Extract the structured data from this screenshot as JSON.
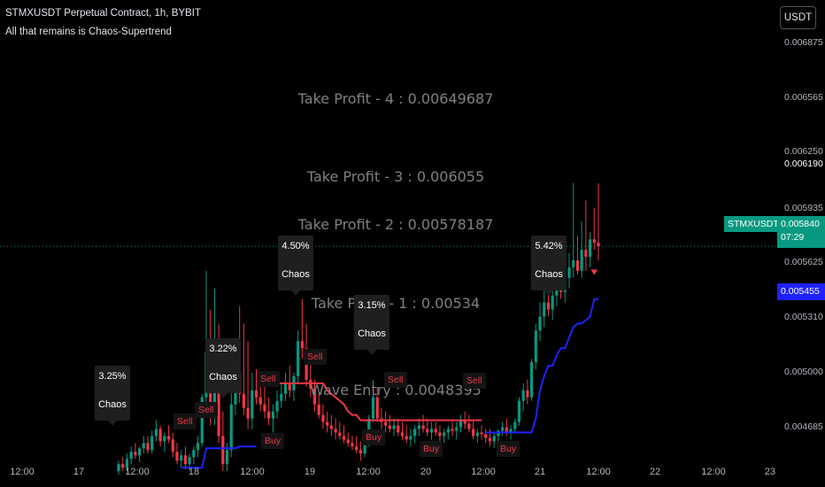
{
  "header": {
    "title": "STMXUSDT Perpetual Contract, 1h, BYBIT",
    "subtitle": "All that remains is Chaos-Supertrend",
    "currency_button": "USDT"
  },
  "colors": {
    "background": "#000000",
    "up_candle": "#089981",
    "down_candle": "#f23645",
    "supertrend_up": "#1e22ff",
    "supertrend_down": "#f23645",
    "annotation_text": "#808083"
  },
  "chart_data": {
    "type": "candlestick",
    "symbol_label": "STMXUSDT.P",
    "last_price": "0.005840",
    "countdown": "07:29",
    "supertrend_value": "0.005455",
    "yaxis": {
      "min": 0.0045,
      "max": 0.007,
      "ticks": [
        "0.006875",
        "0.006565",
        "0.006250",
        "0.006190",
        "0.005935",
        "0.005625",
        "0.005310",
        "0.005000",
        "0.004685"
      ]
    },
    "xaxis": {
      "ticks": [
        "12:00",
        "17",
        "12:00",
        "18",
        "12:00",
        "19",
        "12:00",
        "20",
        "12:00",
        "21",
        "12:00",
        "22",
        "12:00",
        "23"
      ]
    },
    "levels": [
      {
        "label": "Take Profit - 4 : 0.00649687",
        "value": 0.00649687
      },
      {
        "label": "Take Profit - 3 : 0.006055",
        "value": 0.006055
      },
      {
        "label": "Take Profit - 2 : 0.00578187",
        "value": 0.00578187
      },
      {
        "label": "Take Profit - 1 : 0.00534",
        "value": 0.00534
      },
      {
        "label": "Wave Entry : 0.0048395",
        "value": 0.0048395
      }
    ],
    "chaos_labels": [
      {
        "pct": "3.25%",
        "text": "Chaos"
      },
      {
        "pct": "3.22%",
        "text": "Chaos"
      },
      {
        "pct": "4.50%",
        "text": "Chaos"
      },
      {
        "pct": "3.15%",
        "text": "Chaos"
      },
      {
        "pct": "5.42%",
        "text": "Chaos"
      }
    ],
    "signals": [
      {
        "type": "sell",
        "text": "Sell"
      },
      {
        "type": "sell",
        "text": "Sell"
      },
      {
        "type": "sell",
        "text": "Sell"
      },
      {
        "type": "sell",
        "text": "Sell"
      },
      {
        "type": "sell",
        "text": "Sell"
      },
      {
        "type": "sell",
        "text": "Sell"
      },
      {
        "type": "buy",
        "text": "Buy"
      },
      {
        "type": "buy",
        "text": "Buy"
      },
      {
        "type": "buy",
        "text": "Buy"
      },
      {
        "type": "buy",
        "text": "Buy"
      }
    ],
    "candles_ohlc": [
      [
        0.00456,
        0.00462,
        0.00454,
        0.0046
      ],
      [
        0.0046,
        0.00464,
        0.00456,
        0.00458
      ],
      [
        0.00458,
        0.00466,
        0.00456,
        0.00463
      ],
      [
        0.00463,
        0.0047,
        0.0046,
        0.00467
      ],
      [
        0.00467,
        0.00472,
        0.00463,
        0.00465
      ],
      [
        0.00465,
        0.0047,
        0.00461,
        0.00469
      ],
      [
        0.00469,
        0.00476,
        0.00466,
        0.00472
      ],
      [
        0.00472,
        0.00476,
        0.00466,
        0.00468
      ],
      [
        0.00468,
        0.00479,
        0.00466,
        0.00476
      ],
      [
        0.00476,
        0.00485,
        0.00473,
        0.0048
      ],
      [
        0.0048,
        0.00482,
        0.0047,
        0.00473
      ],
      [
        0.00473,
        0.00478,
        0.00467,
        0.00476
      ],
      [
        0.00476,
        0.00482,
        0.00472,
        0.00474
      ],
      [
        0.00474,
        0.00478,
        0.00464,
        0.00467
      ],
      [
        0.00467,
        0.00472,
        0.0046,
        0.00462
      ],
      [
        0.00462,
        0.00468,
        0.00458,
        0.00465
      ],
      [
        0.00465,
        0.0047,
        0.00457,
        0.0046
      ],
      [
        0.0046,
        0.00466,
        0.00456,
        0.00464
      ],
      [
        0.00464,
        0.0047,
        0.0046,
        0.00468
      ],
      [
        0.00468,
        0.00476,
        0.00464,
        0.00472
      ],
      [
        0.00472,
        0.005,
        0.0047,
        0.00498
      ],
      [
        0.00498,
        0.0057,
        0.00494,
        0.00524
      ],
      [
        0.00524,
        0.00548,
        0.00482,
        0.00488
      ],
      [
        0.00488,
        0.0056,
        0.00482,
        0.00502
      ],
      [
        0.00502,
        0.0054,
        0.00472,
        0.00476
      ],
      [
        0.00476,
        0.0049,
        0.00456,
        0.0046
      ],
      [
        0.0046,
        0.00472,
        0.00456,
        0.00468
      ],
      [
        0.00468,
        0.00508,
        0.00464,
        0.00494
      ],
      [
        0.00494,
        0.0053,
        0.00488,
        0.00512
      ],
      [
        0.00512,
        0.0055,
        0.00495,
        0.005
      ],
      [
        0.005,
        0.0054,
        0.00488,
        0.00492
      ],
      [
        0.00492,
        0.0053,
        0.0048,
        0.00486
      ],
      [
        0.00486,
        0.00512,
        0.0048,
        0.00502
      ],
      [
        0.00502,
        0.00514,
        0.00494,
        0.00498
      ],
      [
        0.00498,
        0.00506,
        0.0049,
        0.00494
      ],
      [
        0.00494,
        0.00504,
        0.00486,
        0.0049
      ],
      [
        0.0049,
        0.00498,
        0.00482,
        0.00486
      ],
      [
        0.00486,
        0.00494,
        0.00478,
        0.0049
      ],
      [
        0.0049,
        0.00502,
        0.00486,
        0.00496
      ],
      [
        0.00496,
        0.00506,
        0.00492,
        0.005
      ],
      [
        0.005,
        0.00512,
        0.00496,
        0.00506
      ],
      [
        0.00506,
        0.00516,
        0.00498,
        0.00502
      ],
      [
        0.00502,
        0.00512,
        0.00496,
        0.0051
      ],
      [
        0.0051,
        0.00536,
        0.00506,
        0.0053
      ],
      [
        0.0053,
        0.00554,
        0.0052,
        0.00526
      ],
      [
        0.00526,
        0.0054,
        0.00504,
        0.00508
      ],
      [
        0.00508,
        0.00518,
        0.00498,
        0.00503
      ],
      [
        0.00503,
        0.00508,
        0.0049,
        0.00494
      ],
      [
        0.00494,
        0.005,
        0.00486,
        0.00488
      ],
      [
        0.00488,
        0.00494,
        0.0048,
        0.00484
      ],
      [
        0.00484,
        0.0049,
        0.00478,
        0.00482
      ],
      [
        0.00482,
        0.00488,
        0.00476,
        0.0048
      ],
      [
        0.0048,
        0.00486,
        0.00474,
        0.00478
      ],
      [
        0.00478,
        0.00484,
        0.00474,
        0.00476
      ],
      [
        0.00476,
        0.00482,
        0.00472,
        0.00474
      ],
      [
        0.00474,
        0.00478,
        0.0047,
        0.00472
      ],
      [
        0.00472,
        0.00476,
        0.00468,
        0.0047
      ],
      [
        0.0047,
        0.00476,
        0.00466,
        0.00468
      ],
      [
        0.00468,
        0.00473,
        0.00462,
        0.00466
      ],
      [
        0.00466,
        0.00474,
        0.00464,
        0.00472
      ],
      [
        0.00472,
        0.00488,
        0.0047,
        0.00486
      ],
      [
        0.00486,
        0.00508,
        0.00484,
        0.00498
      ],
      [
        0.00498,
        0.00504,
        0.00484,
        0.00486
      ],
      [
        0.00486,
        0.00492,
        0.0048,
        0.00484
      ],
      [
        0.00484,
        0.0049,
        0.00478,
        0.00482
      ],
      [
        0.00482,
        0.00488,
        0.00478,
        0.0048
      ],
      [
        0.0048,
        0.00486,
        0.00476,
        0.00482
      ],
      [
        0.00482,
        0.00486,
        0.00476,
        0.00478
      ],
      [
        0.00478,
        0.00484,
        0.00474,
        0.00476
      ],
      [
        0.00476,
        0.00482,
        0.00472,
        0.00474
      ],
      [
        0.00474,
        0.0048,
        0.0047,
        0.00476
      ],
      [
        0.00476,
        0.00482,
        0.00472,
        0.0048
      ],
      [
        0.0048,
        0.00486,
        0.00476,
        0.00482
      ],
      [
        0.00482,
        0.00488,
        0.00478,
        0.0048
      ],
      [
        0.0048,
        0.00486,
        0.00476,
        0.00478
      ],
      [
        0.00478,
        0.00484,
        0.00474,
        0.0048
      ],
      [
        0.0048,
        0.00484,
        0.00476,
        0.00478
      ],
      [
        0.00478,
        0.00482,
        0.00472,
        0.00476
      ],
      [
        0.00476,
        0.0048,
        0.00472,
        0.00478
      ],
      [
        0.00478,
        0.00482,
        0.00474,
        0.0048
      ],
      [
        0.0048,
        0.00484,
        0.00476,
        0.00479
      ],
      [
        0.00479,
        0.00484,
        0.00474,
        0.00481
      ],
      [
        0.00481,
        0.00488,
        0.00478,
        0.00485
      ],
      [
        0.00485,
        0.0049,
        0.0048,
        0.00483
      ],
      [
        0.00483,
        0.00488,
        0.00478,
        0.0048
      ],
      [
        0.0048,
        0.00485,
        0.00474,
        0.00476
      ],
      [
        0.00476,
        0.0048,
        0.00472,
        0.00478
      ],
      [
        0.00478,
        0.00482,
        0.00474,
        0.00477
      ],
      [
        0.00477,
        0.0048,
        0.00472,
        0.00475
      ],
      [
        0.00475,
        0.0048,
        0.0047,
        0.00473
      ],
      [
        0.00473,
        0.00478,
        0.00469,
        0.00476
      ],
      [
        0.00476,
        0.0048,
        0.00472,
        0.00479
      ],
      [
        0.00479,
        0.00484,
        0.00476,
        0.00481
      ],
      [
        0.00481,
        0.00486,
        0.00476,
        0.00478
      ],
      [
        0.00478,
        0.00482,
        0.00474,
        0.0048
      ],
      [
        0.0048,
        0.00486,
        0.00478,
        0.00484
      ],
      [
        0.00484,
        0.00498,
        0.00482,
        0.00496
      ],
      [
        0.00496,
        0.00506,
        0.0049,
        0.00502
      ],
      [
        0.00502,
        0.00508,
        0.00494,
        0.00498
      ],
      [
        0.00498,
        0.0052,
        0.00496,
        0.00518
      ],
      [
        0.00518,
        0.0054,
        0.00514,
        0.00536
      ],
      [
        0.00536,
        0.00552,
        0.0053,
        0.00544
      ],
      [
        0.00544,
        0.0056,
        0.00538,
        0.00552
      ],
      [
        0.00552,
        0.00564,
        0.00544,
        0.00548
      ],
      [
        0.00548,
        0.0056,
        0.00542,
        0.00556
      ],
      [
        0.00556,
        0.00568,
        0.0055,
        0.00562
      ],
      [
        0.00562,
        0.00574,
        0.00554,
        0.00558
      ],
      [
        0.00558,
        0.0057,
        0.00552,
        0.00566
      ],
      [
        0.00566,
        0.0058,
        0.0056,
        0.00572
      ],
      [
        0.00572,
        0.0062,
        0.00566,
        0.00576
      ],
      [
        0.00576,
        0.0059,
        0.00568,
        0.0057
      ],
      [
        0.0057,
        0.00598,
        0.00566,
        0.00582
      ],
      [
        0.00582,
        0.0061,
        0.0057,
        0.00578
      ],
      [
        0.00578,
        0.00592,
        0.00572,
        0.00588
      ],
      [
        0.00588,
        0.00606,
        0.00582,
        0.00586
      ],
      [
        0.00586,
        0.0062,
        0.00576,
        0.00584
      ]
    ]
  }
}
